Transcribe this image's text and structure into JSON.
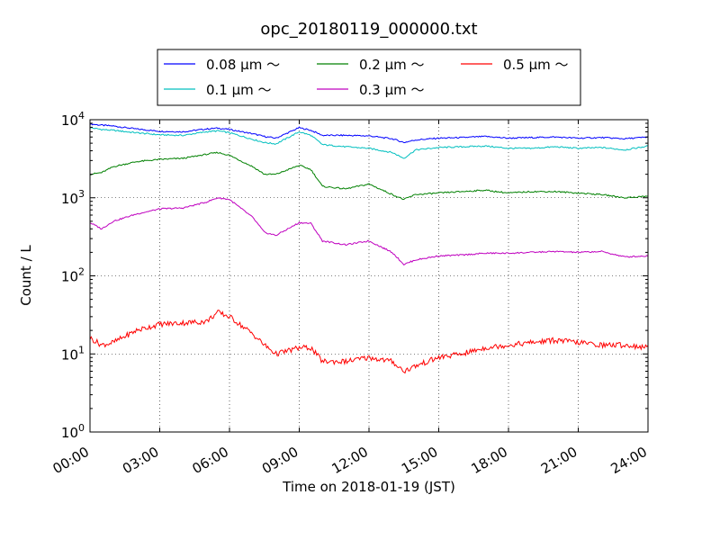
{
  "chart_data": {
    "type": "line",
    "title": "opc_20180119_000000.txt",
    "xlabel": "Time on 2018-01-19 (JST)",
    "ylabel": "Count / L",
    "yscale": "log",
    "ylim": [
      1,
      10000
    ],
    "xlim": [
      0,
      24
    ],
    "x_tick_labels": [
      "00:00",
      "03:00",
      "06:00",
      "09:00",
      "12:00",
      "15:00",
      "18:00",
      "21:00",
      "24:00"
    ],
    "y_tick_labels": [
      {
        "base": "10",
        "exp": "0"
      },
      {
        "base": "10",
        "exp": "1"
      },
      {
        "base": "10",
        "exp": "2"
      },
      {
        "base": "10",
        "exp": "3"
      },
      {
        "base": "10",
        "exp": "4"
      }
    ],
    "grid": true,
    "legend_position": "top-center",
    "x_hours": [
      0,
      0.5,
      1,
      2,
      3,
      4,
      5,
      5.5,
      6,
      7,
      7.5,
      8,
      9,
      9.5,
      10,
      11,
      12,
      13,
      13.5,
      14,
      15,
      16,
      17,
      18,
      19,
      20,
      21,
      22,
      23,
      24
    ],
    "series": [
      {
        "name": "0.08 μm ～",
        "color": "#0000ff",
        "values": [
          8800,
          8500,
          8300,
          7600,
          7100,
          7000,
          7600,
          7800,
          7500,
          6600,
          6100,
          5800,
          7900,
          7300,
          6300,
          6300,
          6200,
          5700,
          5100,
          5500,
          5800,
          5900,
          6100,
          5800,
          5900,
          6000,
          5800,
          5900,
          5700,
          6000
        ]
      },
      {
        "name": "0.1 μm ～",
        "color": "#00bfbf",
        "values": [
          7900,
          7500,
          7300,
          6800,
          6400,
          6300,
          7000,
          7200,
          6800,
          5600,
          5100,
          4900,
          7000,
          6300,
          4800,
          4500,
          4300,
          3800,
          3200,
          4100,
          4400,
          4500,
          4600,
          4300,
          4300,
          4500,
          4300,
          4400,
          4100,
          4600
        ]
      },
      {
        "name": "0.2 μm ～",
        "color": "#008000",
        "values": [
          2000,
          2100,
          2500,
          2900,
          3100,
          3200,
          3600,
          3800,
          3500,
          2500,
          2000,
          2000,
          2600,
          2300,
          1400,
          1300,
          1500,
          1100,
          950,
          1100,
          1150,
          1200,
          1250,
          1150,
          1200,
          1200,
          1150,
          1100,
          1000,
          1050
        ]
      },
      {
        "name": "0.3 μm ～",
        "color": "#bf00bf",
        "values": [
          480,
          400,
          500,
          620,
          720,
          740,
          880,
          1000,
          950,
          560,
          360,
          330,
          480,
          470,
          280,
          250,
          280,
          200,
          140,
          160,
          180,
          185,
          195,
          195,
          200,
          205,
          200,
          205,
          175,
          180
        ]
      },
      {
        "name": "0.5 μm ～",
        "color": "#ff0000",
        "values": [
          16,
          13,
          14,
          20,
          24,
          25,
          26,
          34,
          30,
          18,
          13,
          10,
          12,
          12,
          8,
          8,
          9,
          8,
          6,
          7,
          9,
          10,
          12,
          13,
          14,
          15,
          14,
          13,
          13,
          12
        ]
      }
    ]
  }
}
